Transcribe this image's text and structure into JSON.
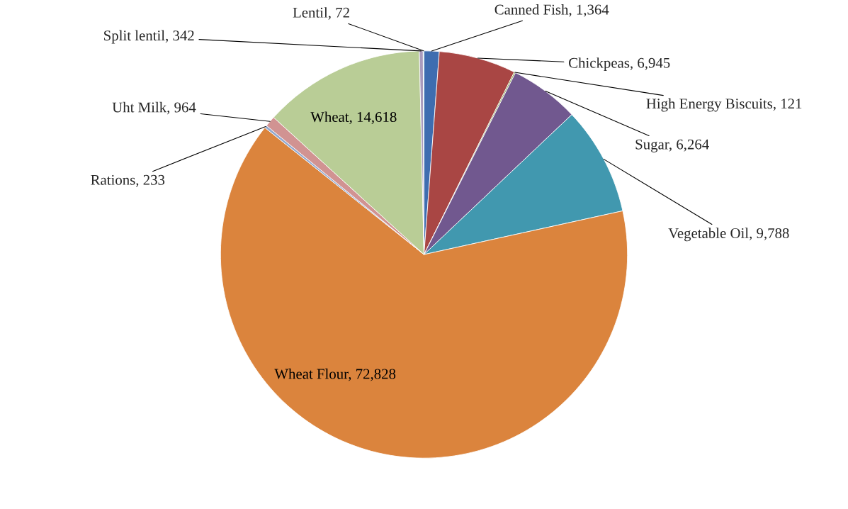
{
  "chart_data": {
    "type": "pie",
    "categories": [
      "Canned Fish",
      "Chickpeas",
      "High Energy Biscuits",
      "Sugar",
      "Vegetable Oil",
      "Wheat Flour",
      "Rations",
      "Uht Milk",
      "Wheat",
      "Split lentil",
      "Lentil"
    ],
    "values": [
      1364,
      6945,
      121,
      6264,
      9788,
      72828,
      233,
      964,
      14618,
      342,
      72
    ],
    "value_labels": [
      "1,364",
      "6,945",
      "121",
      "6,264",
      "9,788",
      "72,828",
      "233",
      "964",
      "14,618",
      "342",
      "72"
    ],
    "colors": [
      "#3e6db0",
      "#a94644",
      "#8aa44f",
      "#71588f",
      "#4198af",
      "#db843d",
      "#93a9cf",
      "#d19392",
      "#b9cd96",
      "#a99bbd",
      "#4bacc6"
    ],
    "legend": false
  }
}
